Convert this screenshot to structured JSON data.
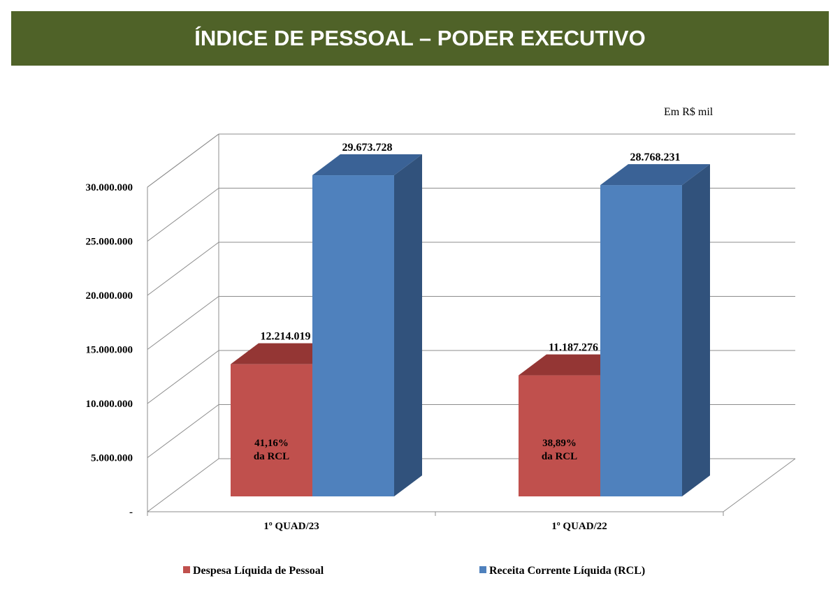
{
  "header": {
    "title": "ÍNDICE DE PESSOAL – PODER EXECUTIVO"
  },
  "chart_data": {
    "type": "bar",
    "title": "ÍNDICE DE PESSOAL – PODER EXECUTIVO",
    "unit_note": "Em R$ mil",
    "categories": [
      "1º QUAD/23",
      "1º QUAD/22"
    ],
    "series": [
      {
        "name": "Despesa Líquida de Pessoal",
        "values": [
          12214019,
          11187276
        ],
        "labels": [
          "12.214.019",
          "11.187.276"
        ],
        "inner_labels": [
          [
            "41,16%",
            "da RCL"
          ],
          [
            "38,89%",
            "da RCL"
          ]
        ],
        "color": "#C0504D",
        "top": "#943634",
        "side": "#7F2F2D"
      },
      {
        "name": "Receita Corrente Líquida (RCL)",
        "values": [
          29673728,
          28768231
        ],
        "labels": [
          "29.673.728",
          "28.768.231"
        ],
        "color": "#4F81BD",
        "top": "#3A6296",
        "side": "#31527C"
      }
    ],
    "yticks": [
      0,
      5000000,
      10000000,
      15000000,
      20000000,
      25000000,
      30000000
    ],
    "ytick_labels": [
      "-",
      "5.000.000",
      "10.000.000",
      "15.000.000",
      "20.000.000",
      "25.000.000",
      "30.000.000"
    ],
    "ylim": [
      0,
      30000000
    ],
    "legend": "bottom",
    "style": "3d-column"
  }
}
